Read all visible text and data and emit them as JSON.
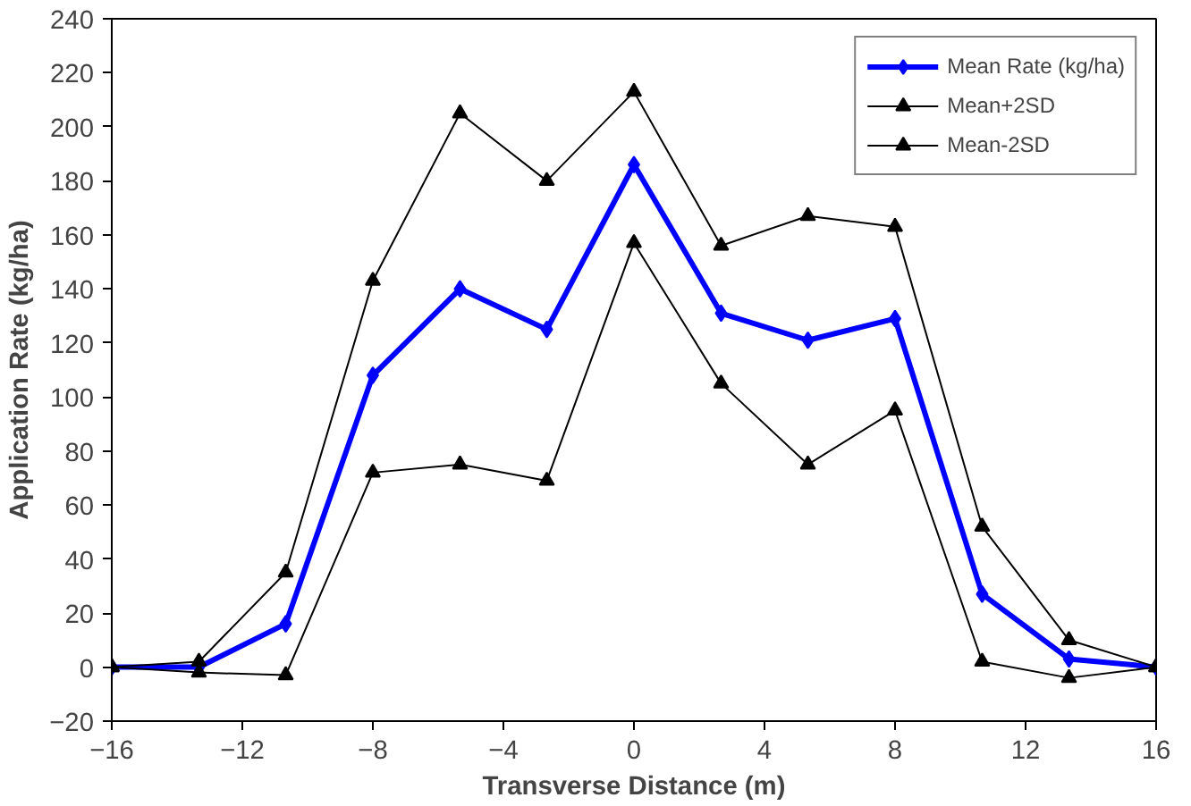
{
  "chart_data": {
    "type": "line",
    "xlabel": "Transverse Distance (m)",
    "ylabel": "Application Rate (kg/ha)",
    "x": [
      -16,
      -13.33,
      -10.67,
      -8,
      -5.33,
      -2.67,
      0,
      2.67,
      5.33,
      8,
      10.67,
      13.33,
      16
    ],
    "series": [
      {
        "name": "Mean Rate (kg/ha)",
        "color": "#0000ff",
        "marker": "diamond",
        "values": [
          0,
          0,
          16,
          108,
          140,
          125,
          186,
          131,
          121,
          129,
          27,
          3,
          0
        ]
      },
      {
        "name": "Mean+2SD",
        "color": "#000000",
        "marker": "triangle",
        "values": [
          0,
          2,
          35,
          143,
          205,
          180,
          213,
          156,
          167,
          163,
          52,
          10,
          0
        ]
      },
      {
        "name": "Mean-2SD",
        "color": "#000000",
        "marker": "triangle",
        "values": [
          0,
          -2,
          -3,
          72,
          75,
          69,
          157,
          105,
          75,
          95,
          2,
          -4,
          0
        ]
      }
    ],
    "xlim": [
      -16,
      16
    ],
    "xticks": [
      -16,
      -12,
      -8,
      -4,
      0,
      4,
      8,
      12,
      16
    ],
    "ylim": [
      -20,
      240
    ],
    "yticks": [
      -20,
      0,
      20,
      40,
      60,
      80,
      100,
      120,
      140,
      160,
      180,
      200,
      220,
      240
    ],
    "grid": false,
    "legend": "top right",
    "line_style": "solid"
  }
}
